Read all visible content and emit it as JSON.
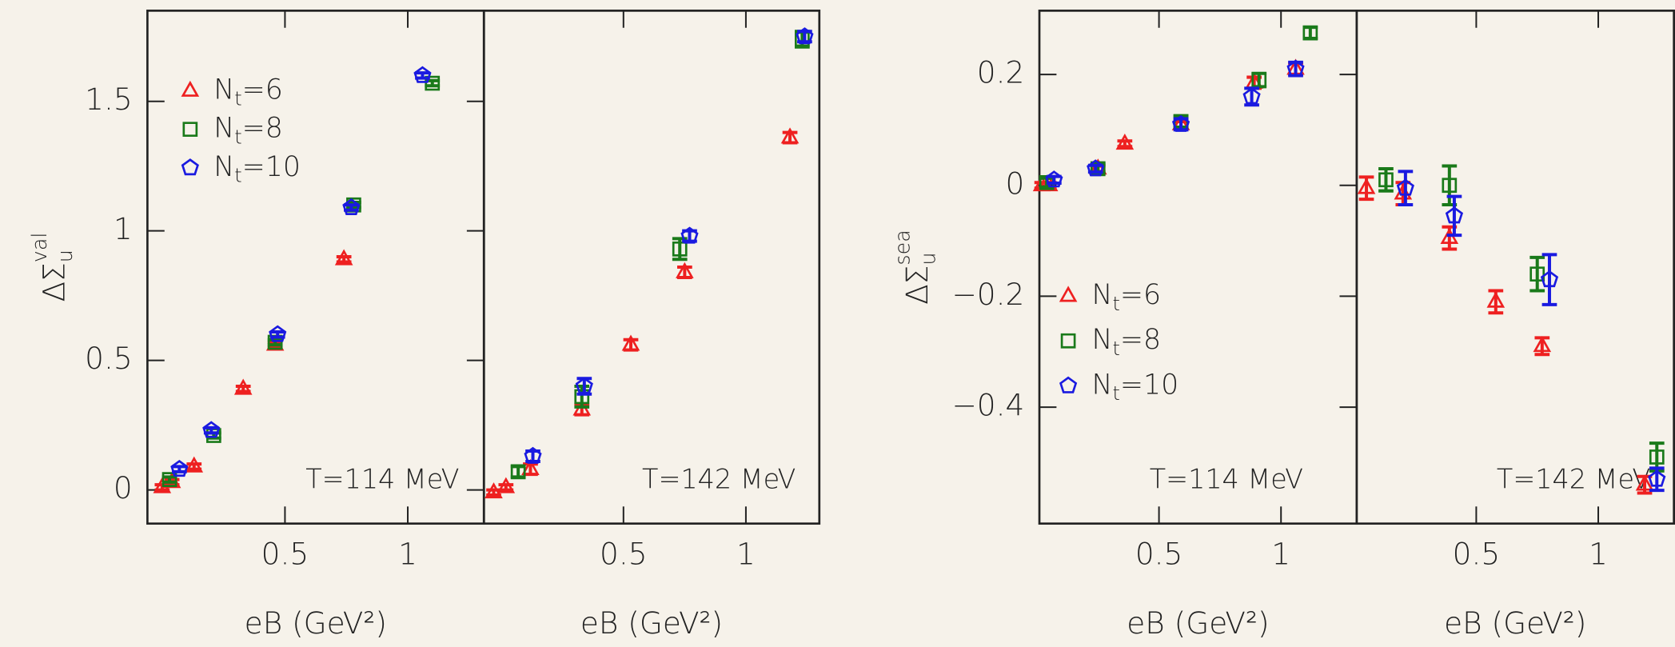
{
  "chart_data": [
    {
      "type": "scatter",
      "xlabel": "eB (GeV²)",
      "ylabel": {
        "text": "ΔΣ",
        "sub": "u",
        "sup": "val"
      },
      "annotation": "T=114 MeV",
      "xlim": [
        -0.06,
        1.31
      ],
      "ylim": [
        -0.13,
        1.85
      ],
      "xticks": [
        0.5,
        1
      ],
      "yticks": [
        0,
        0.5,
        1,
        1.5
      ],
      "legend": "upper left",
      "series": [
        {
          "name": "Nt=6",
          "color": "#ee2020",
          "marker": "triangle",
          "x": [
            0.0,
            0.04,
            0.13,
            0.33,
            0.46,
            0.74
          ],
          "values": [
            0.01,
            0.03,
            0.09,
            0.39,
            0.56,
            0.89
          ],
          "errors": [
            0.01,
            0.01,
            0.01,
            0.01,
            0.01,
            0.01
          ]
        },
        {
          "name": "Nt=8",
          "color": "#1a7a1a",
          "marker": "square",
          "x": [
            0.03,
            0.21,
            0.46,
            0.78,
            1.1
          ],
          "values": [
            0.04,
            0.21,
            0.57,
            1.1,
            1.57
          ],
          "errors": [
            0.01,
            0.01,
            0.01,
            0.01,
            0.01
          ]
        },
        {
          "name": "Nt=10",
          "color": "#1a1ae0",
          "marker": "pentagon",
          "x": [
            0.07,
            0.2,
            0.47,
            0.77,
            1.06
          ],
          "values": [
            0.08,
            0.23,
            0.6,
            1.09,
            1.6
          ],
          "errors": [
            0.01,
            0.01,
            0.01,
            0.01,
            0.01
          ]
        }
      ]
    },
    {
      "type": "scatter",
      "xlabel": "eB (GeV²)",
      "annotation": "T=142 MeV",
      "xlim": [
        -0.07,
        1.3
      ],
      "ylim": [
        -0.13,
        1.85
      ],
      "xticks": [
        0.5,
        1
      ],
      "series": [
        {
          "color": "#ee2020",
          "marker": "triangle",
          "x": [
            -0.03,
            0.02,
            0.12,
            0.33,
            0.53,
            0.75,
            1.18
          ],
          "values": [
            -0.01,
            0.01,
            0.08,
            0.31,
            0.56,
            0.84,
            1.36
          ],
          "errors": [
            0.01,
            0.01,
            0.02,
            0.02,
            0.02,
            0.02,
            0.02
          ]
        },
        {
          "color": "#1a7a1a",
          "marker": "square",
          "x": [
            0.07,
            0.33,
            0.73,
            1.23
          ],
          "values": [
            0.07,
            0.36,
            0.93,
            1.74
          ],
          "errors": [
            0.02,
            0.04,
            0.04,
            0.03
          ]
        },
        {
          "color": "#1a1ae0",
          "marker": "pentagon",
          "x": [
            0.13,
            0.34,
            0.77,
            1.24
          ],
          "values": [
            0.13,
            0.4,
            0.98,
            1.75
          ],
          "errors": [
            0.02,
            0.03,
            0.02,
            0.02
          ]
        }
      ]
    },
    {
      "type": "scatter",
      "xlabel": "eB (GeV²)",
      "ylabel": {
        "text": "ΔΣ",
        "sub": "u",
        "sup": "sea"
      },
      "annotation": "T=114 MeV",
      "xlim": [
        0.01,
        1.31
      ],
      "ylim": [
        -0.61,
        0.315
      ],
      "xticks": [
        0.5,
        1
      ],
      "yticks": [
        0.2,
        0,
        {
          "value": -0.2,
          "label": "−0.2"
        },
        {
          "value": -0.4,
          "label": "−0.4"
        }
      ],
      "legend": "lower left",
      "series": [
        {
          "name": "Nt=6",
          "color": "#ee2020",
          "marker": "triangle",
          "x": [
            0.02,
            0.05,
            0.25,
            0.36,
            0.59,
            0.89,
            1.06
          ],
          "values": [
            0.0,
            0.0,
            0.03,
            0.075,
            0.11,
            0.185,
            0.21
          ],
          "errors": [
            0.005,
            0.005,
            0.005,
            0.005,
            0.005,
            0.01,
            0.01
          ]
        },
        {
          "name": "Nt=8",
          "color": "#1a7a1a",
          "marker": "square",
          "x": [
            0.04,
            0.25,
            0.59,
            0.91,
            1.12
          ],
          "values": [
            0.005,
            0.03,
            0.115,
            0.19,
            0.275
          ],
          "errors": [
            0.008,
            0.008,
            0.01,
            0.012,
            0.01
          ]
        },
        {
          "name": "Nt=10",
          "color": "#1a1ae0",
          "marker": "pentagon",
          "x": [
            0.07,
            0.24,
            0.59,
            0.88,
            1.06
          ],
          "values": [
            0.01,
            0.03,
            0.11,
            0.16,
            0.21
          ],
          "errors": [
            0.006,
            0.006,
            0.01,
            0.015,
            0.012
          ]
        }
      ]
    },
    {
      "type": "scatter",
      "xlabel": "eB (GeV²)",
      "annotation": "T=142 MeV",
      "xlim": [
        0.01,
        1.31
      ],
      "ylim": [
        -0.61,
        0.315
      ],
      "xticks": [
        0.5,
        1
      ],
      "series": [
        {
          "color": "#ee2020",
          "marker": "triangle",
          "x": [
            0.05,
            0.2,
            0.39,
            0.58,
            0.77,
            1.19
          ],
          "values": [
            -0.005,
            -0.015,
            -0.095,
            -0.21,
            -0.29,
            -0.54
          ],
          "errors": [
            0.02,
            0.02,
            0.02,
            0.02,
            0.015,
            0.015
          ]
        },
        {
          "color": "#1a7a1a",
          "marker": "square",
          "x": [
            0.13,
            0.39,
            0.75,
            1.24
          ],
          "values": [
            0.01,
            0.0,
            -0.16,
            -0.49
          ],
          "errors": [
            0.02,
            0.035,
            0.03,
            0.025
          ]
        },
        {
          "color": "#1a1ae0",
          "marker": "pentagon",
          "x": [
            0.21,
            0.41,
            0.8,
            1.24
          ],
          "values": [
            -0.005,
            -0.055,
            -0.17,
            -0.53
          ],
          "errors": [
            0.03,
            0.035,
            0.045,
            0.02
          ]
        }
      ]
    }
  ]
}
